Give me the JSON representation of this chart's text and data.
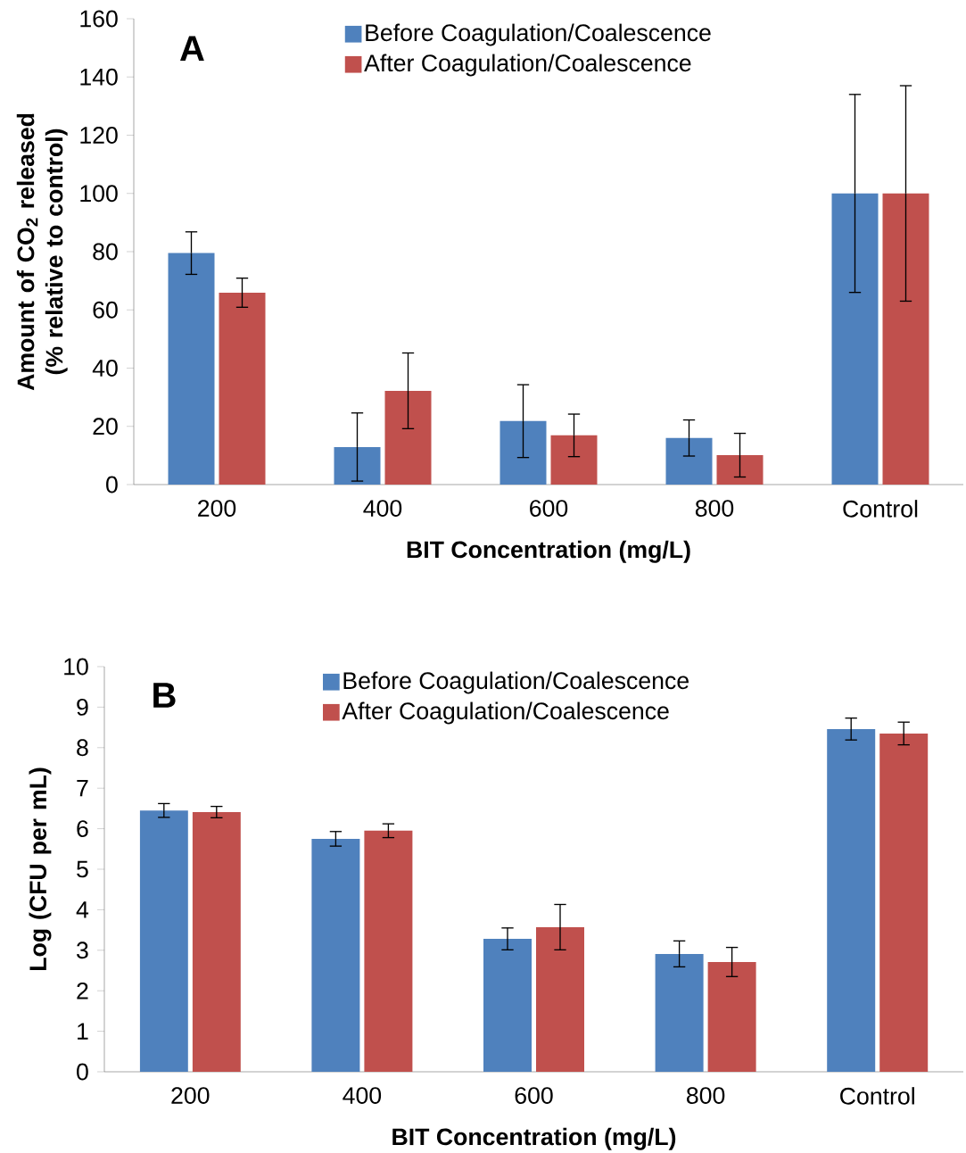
{
  "chart_data": [
    {
      "type": "bar",
      "annotations": [
        "A"
      ],
      "xlabel": "BIT Concentration (mg/L)",
      "ylabel": "Amount of CO$_{2}$ released (% relative to control)",
      "categories": [
        "200",
        "400",
        "600",
        "800",
        "Control"
      ],
      "series": [
        {
          "name": "Before Coagulation/Coalescence",
          "color": "#4f81bd",
          "values": [
            79.5,
            12.9,
            21.8,
            16,
            100
          ],
          "errors": [
            7.3,
            11.7,
            12.5,
            6.2,
            34
          ]
        },
        {
          "name": "After Coagulation/Coalescence",
          "color": "#c0504d",
          "values": [
            65.9,
            32.2,
            16.9,
            10.1,
            100
          ],
          "errors": [
            5,
            13,
            7.3,
            7.5,
            37
          ]
        }
      ],
      "ylim": [
        0,
        160
      ],
      "yticks": [
        0,
        20,
        40,
        60,
        80,
        100,
        120,
        140,
        160
      ],
      "grid": false,
      "legend": "top"
    },
    {
      "type": "bar",
      "annotations": [
        "B"
      ],
      "xlabel": "BIT Concentration (mg/L)",
      "ylabel": "Log (CFU per mL)",
      "categories": [
        "200",
        "400",
        "600",
        "800",
        "Control"
      ],
      "series": [
        {
          "name": "Before Coagulation/Coalescence",
          "color": "#4f81bd",
          "values": [
            6.45,
            5.75,
            3.28,
            2.91,
            8.46
          ],
          "errors": [
            0.17,
            0.18,
            0.27,
            0.32,
            0.27
          ]
        },
        {
          "name": "After Coagulation/Coalescence",
          "color": "#c0504d",
          "values": [
            6.41,
            5.95,
            3.57,
            2.71,
            8.35
          ],
          "errors": [
            0.14,
            0.17,
            0.56,
            0.36,
            0.28
          ]
        }
      ],
      "ylim": [
        0,
        10
      ],
      "yticks": [
        0,
        1,
        2,
        3,
        4,
        5,
        6,
        7,
        8,
        9,
        10
      ],
      "grid": false,
      "legend": "top"
    }
  ]
}
